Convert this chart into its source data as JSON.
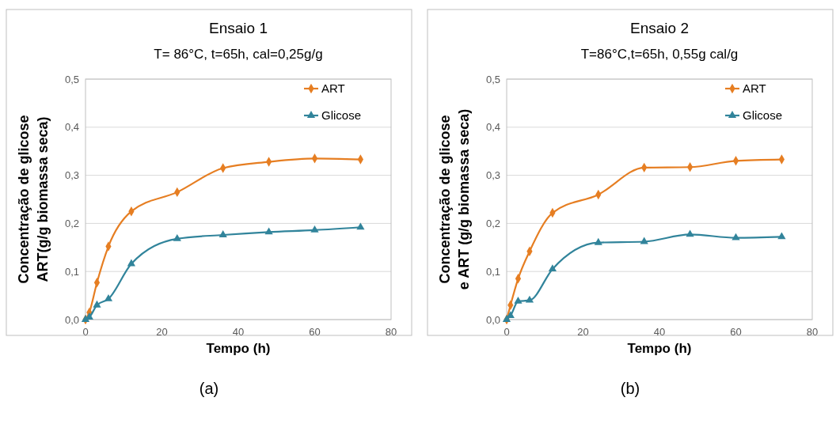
{
  "chart_data": [
    {
      "type": "line",
      "title": "Ensaio 1",
      "subtitle": "T= 86°C, t=65h, cal=0,25g/g",
      "xlabel": "Tempo (h)",
      "ylabel": "Concentração de glicose ART(g/g biomassa seca)",
      "annotations": [
        "(a)"
      ],
      "x": [
        0,
        1,
        3,
        6,
        12,
        24,
        36,
        48,
        60,
        72
      ],
      "series": [
        {
          "name": "ART",
          "color": "#e67e22",
          "marker": "diamond",
          "values": [
            0,
            0.015,
            0.077,
            0.152,
            0.225,
            0.265,
            0.315,
            0.328,
            0.335,
            0.333
          ]
        },
        {
          "name": "Glicose",
          "color": "#31849b",
          "marker": "triangle",
          "values": [
            0,
            0.005,
            0.03,
            0.043,
            0.116,
            0.168,
            0.176,
            0.182,
            0.186,
            0.192
          ]
        }
      ],
      "xlim": [
        0,
        80
      ],
      "xticks": [
        0,
        20,
        40,
        60,
        80
      ],
      "ylim": [
        0,
        0.5
      ],
      "yticks": [
        {
          "value": 0,
          "label": "0,0"
        },
        {
          "value": 0.1,
          "label": "0,1"
        },
        {
          "value": 0.2,
          "label": "0,2"
        },
        {
          "value": 0.3,
          "label": "0,3"
        },
        {
          "value": 0.4,
          "label": "0,4"
        },
        {
          "value": 0.5,
          "label": "0,5"
        }
      ],
      "grid": "y",
      "legend": "top right"
    },
    {
      "type": "line",
      "title": "Ensaio 2",
      "subtitle": "T=86°C,t=65h, 0,55g cal/g",
      "xlabel": "Tempo (h)",
      "ylabel": "Concentração de glicose e ART (g/g biomassa seca)",
      "annotations": [
        "(b)"
      ],
      "x": [
        0,
        1,
        3,
        6,
        12,
        24,
        36,
        48,
        60,
        72
      ],
      "series": [
        {
          "name": "ART",
          "color": "#e67e22",
          "marker": "diamond",
          "values": [
            0,
            0.03,
            0.085,
            0.142,
            0.222,
            0.26,
            0.316,
            0.317,
            0.33,
            0.333
          ]
        },
        {
          "name": "Glicose",
          "color": "#31849b",
          "marker": "triangle",
          "values": [
            0,
            0.008,
            0.038,
            0.04,
            0.105,
            0.16,
            0.162,
            0.177,
            0.17,
            0.172
          ]
        }
      ],
      "xlim": [
        0,
        80
      ],
      "xticks": [
        0,
        20,
        40,
        60,
        80
      ],
      "ylim": [
        0,
        0.5
      ],
      "yticks": [
        {
          "value": 0,
          "label": "0,0"
        },
        {
          "value": 0.1,
          "label": "0,1"
        },
        {
          "value": 0.2,
          "label": "0,2"
        },
        {
          "value": 0.3,
          "label": "0,3"
        },
        {
          "value": 0.4,
          "label": "0,4"
        },
        {
          "value": 0.5,
          "label": "0,5"
        }
      ],
      "grid": "y",
      "legend": "top right"
    }
  ]
}
